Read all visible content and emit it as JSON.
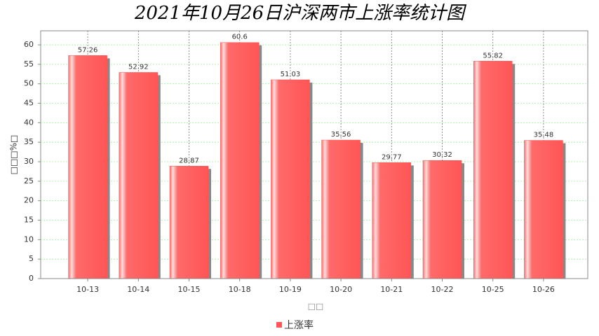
{
  "chart_data": {
    "type": "bar",
    "title": "2021年10月26日沪深两市上涨率统计图",
    "x_label": "□□",
    "y_label": "□□□%□",
    "categories": [
      "10-13",
      "10-14",
      "10-15",
      "10-18",
      "10-19",
      "10-20",
      "10-21",
      "10-22",
      "10-25",
      "10-26"
    ],
    "series": [
      {
        "name": "上涨率",
        "color": "#ff5555",
        "values": [
          57.26,
          52.92,
          28.87,
          60.6,
          51.03,
          35.56,
          29.77,
          30.32,
          55.82,
          35.48
        ]
      }
    ],
    "ylim": [
      0,
      63.6
    ],
    "yticks": [
      0,
      5,
      10,
      15,
      20,
      25,
      30,
      35,
      40,
      45,
      50,
      55,
      60
    ],
    "grid": true,
    "legend": "bottom"
  }
}
